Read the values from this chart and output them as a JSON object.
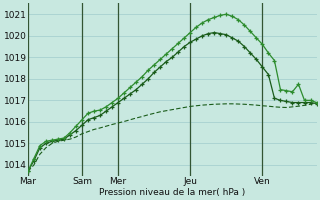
{
  "background_color": "#c8e8e0",
  "grid_color": "#a0cccc",
  "line_color_dark": "#1a5c1a",
  "line_color_mid": "#2d8c2d",
  "ylabel": "Pression niveau de la mer( hPa )",
  "ylim": [
    1013.5,
    1021.5
  ],
  "yticks": [
    1014,
    1015,
    1016,
    1017,
    1018,
    1019,
    1020,
    1021
  ],
  "x_day_labels": [
    "Mar",
    "Sam",
    "Mer",
    "Jeu",
    "Ven"
  ],
  "x_day_positions": [
    0,
    36,
    60,
    108,
    156
  ],
  "total_steps": 192,
  "line1_x": [
    0,
    4,
    8,
    12,
    16,
    20,
    24,
    28,
    32,
    36,
    40,
    44,
    48,
    52,
    56,
    60,
    64,
    68,
    72,
    76,
    80,
    84,
    88,
    92,
    96,
    100,
    104,
    108,
    112,
    116,
    120,
    124,
    128,
    132,
    136,
    140,
    144,
    148,
    152,
    156,
    160,
    164,
    168,
    172,
    176,
    180,
    184,
    188,
    192
  ],
  "line1_y": [
    1013.7,
    1014.3,
    1014.9,
    1015.1,
    1015.15,
    1015.2,
    1015.25,
    1015.5,
    1015.8,
    1016.1,
    1016.4,
    1016.5,
    1016.55,
    1016.7,
    1016.9,
    1017.1,
    1017.35,
    1017.6,
    1017.85,
    1018.1,
    1018.4,
    1018.65,
    1018.9,
    1019.15,
    1019.4,
    1019.65,
    1019.9,
    1020.15,
    1020.4,
    1020.6,
    1020.75,
    1020.85,
    1020.95,
    1021.0,
    1020.9,
    1020.75,
    1020.5,
    1020.2,
    1019.9,
    1019.6,
    1019.2,
    1018.85,
    1017.5,
    1017.45,
    1017.4,
    1017.75,
    1017.0,
    1017.0,
    1016.9
  ],
  "line2_x": [
    0,
    4,
    8,
    12,
    16,
    20,
    24,
    28,
    32,
    36,
    40,
    44,
    48,
    52,
    56,
    60,
    64,
    68,
    72,
    76,
    80,
    84,
    88,
    92,
    96,
    100,
    104,
    108,
    112,
    116,
    120,
    124,
    128,
    132,
    136,
    140,
    144,
    148,
    152,
    156,
    160,
    164,
    168,
    172,
    176,
    180,
    184,
    188,
    192
  ],
  "line2_y": [
    1013.7,
    1014.2,
    1014.8,
    1015.0,
    1015.1,
    1015.15,
    1015.2,
    1015.4,
    1015.6,
    1015.85,
    1016.1,
    1016.2,
    1016.3,
    1016.5,
    1016.7,
    1016.9,
    1017.1,
    1017.3,
    1017.5,
    1017.75,
    1018.0,
    1018.3,
    1018.55,
    1018.8,
    1019.0,
    1019.25,
    1019.5,
    1019.7,
    1019.85,
    1020.0,
    1020.1,
    1020.15,
    1020.1,
    1020.05,
    1019.9,
    1019.75,
    1019.5,
    1019.2,
    1018.9,
    1018.55,
    1018.2,
    1017.1,
    1017.0,
    1016.95,
    1016.9,
    1016.9,
    1016.9,
    1016.9,
    1016.85
  ],
  "line3_x": [
    0,
    4,
    8,
    12,
    16,
    20,
    24,
    28,
    32,
    36,
    40,
    44,
    48,
    52,
    56,
    60,
    64,
    68,
    72,
    76,
    80,
    84,
    88,
    92,
    96,
    100,
    104,
    108,
    112,
    116,
    120,
    124,
    128,
    132,
    136,
    140,
    144,
    148,
    152,
    156,
    160,
    164,
    168,
    172,
    176,
    180,
    184,
    188,
    192
  ],
  "line3_y": [
    1013.7,
    1014.0,
    1014.5,
    1014.8,
    1015.0,
    1015.1,
    1015.15,
    1015.2,
    1015.3,
    1015.45,
    1015.55,
    1015.65,
    1015.72,
    1015.8,
    1015.88,
    1015.95,
    1016.02,
    1016.1,
    1016.18,
    1016.25,
    1016.33,
    1016.4,
    1016.47,
    1016.52,
    1016.57,
    1016.62,
    1016.67,
    1016.72,
    1016.75,
    1016.78,
    1016.8,
    1016.82,
    1016.83,
    1016.84,
    1016.84,
    1016.83,
    1016.82,
    1016.8,
    1016.78,
    1016.75,
    1016.73,
    1016.7,
    1016.68,
    1016.67,
    1016.7,
    1016.73,
    1016.77,
    1016.82,
    1016.9
  ]
}
